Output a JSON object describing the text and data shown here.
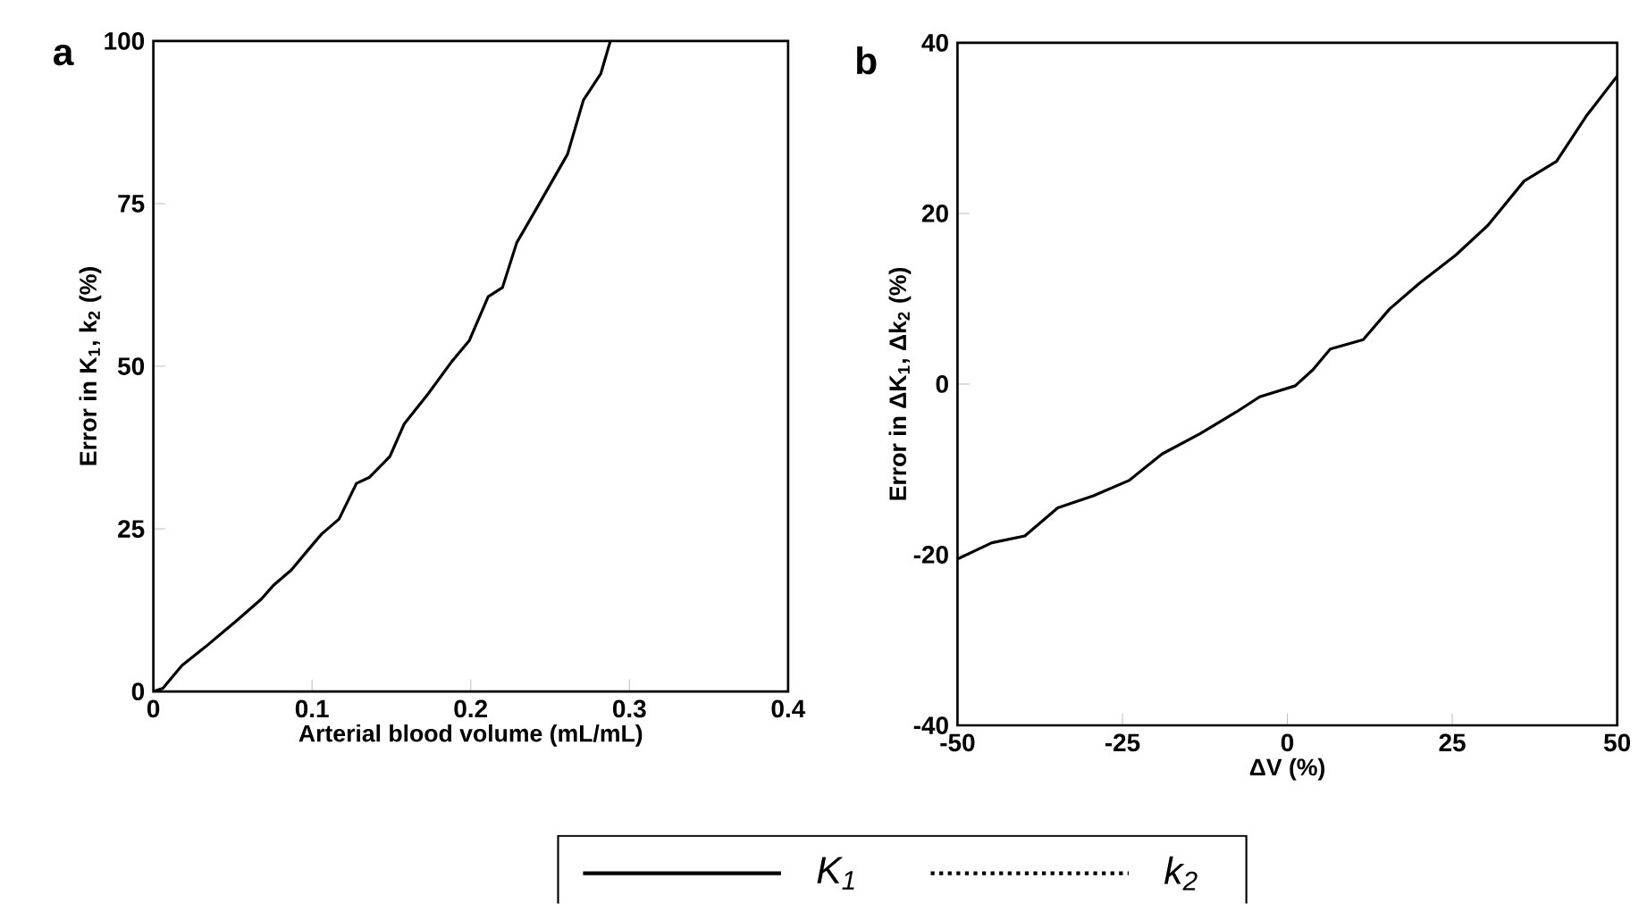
{
  "chart_data": [
    {
      "type": "line",
      "title": "a",
      "xlabel": "Arterial blood volume (mL/mL)",
      "ylabel": "Error in K$_{1}$, k$_{2}$ (%)",
      "x": [
        0,
        0.006,
        0.018,
        0.033,
        0.053,
        0.068,
        0.076,
        0.087,
        0.098,
        0.106,
        0.117,
        0.128,
        0.136,
        0.149,
        0.158,
        0.173,
        0.188,
        0.199,
        0.211,
        0.22,
        0.229,
        0.243,
        0.261,
        0.271,
        0.282,
        0.288
      ],
      "series": [
        {
          "name": "K$_{1}$",
          "color": "#000000",
          "line_style": "solid",
          "values": [
            0,
            0.5,
            4,
            6.9,
            11,
            14.2,
            16.4,
            18.7,
            21.9,
            24.2,
            26.5,
            32,
            32.9,
            36.1,
            41.1,
            45.7,
            50.7,
            53.9,
            60.7,
            62.1,
            69,
            74.9,
            82.6,
            90.9,
            95,
            100
          ]
        },
        {
          "name": "k$_{2}$",
          "color": "#000000",
          "line_style": "dotted",
          "values": [
            null,
            null,
            null,
            null,
            null,
            null,
            null,
            null,
            null,
            null,
            null,
            null,
            null,
            null,
            null,
            null,
            null,
            null,
            null,
            null,
            null,
            null,
            null,
            null,
            null,
            null
          ]
        }
      ],
      "xlim": [
        0,
        0.4
      ],
      "xticks": [
        0,
        0.1,
        0.2,
        0.3,
        0.4
      ],
      "ylim": [
        0,
        100
      ],
      "yticks": [
        0,
        25,
        50,
        75,
        100
      ],
      "legend": "bottom",
      "grid": false
    },
    {
      "type": "line",
      "title": "b",
      "xlabel": "ΔV (%)",
      "ylabel": "Error in ΔK$_{1}$, Δk$_{2}$ (%)",
      "x": [
        -50,
        -44.8,
        -39.8,
        -34.8,
        -29.4,
        -24,
        -19,
        -13.2,
        -7.8,
        -4.2,
        1.2,
        3.9,
        6.5,
        11.5,
        15.5,
        20,
        25.5,
        30.4,
        35.9,
        40.8,
        45.3,
        50
      ],
      "series": [
        {
          "color": "#000000",
          "line_style": "solid",
          "values": [
            -20.5,
            -18.6,
            -17.8,
            -14.5,
            -13.1,
            -11.3,
            -8.2,
            -5.8,
            -3.3,
            -1.5,
            -0.2,
            1.7,
            4.1,
            5.2,
            8.8,
            11.8,
            15.1,
            18.6,
            23.8,
            26.1,
            31.4,
            36.1
          ]
        }
      ],
      "xlim": [
        -50,
        50
      ],
      "xticks": [
        -50,
        -25,
        0,
        25,
        50
      ],
      "ylim": [
        -40,
        40
      ],
      "yticks": [
        -40,
        -20,
        0,
        20,
        40
      ],
      "grid": false
    }
  ]
}
